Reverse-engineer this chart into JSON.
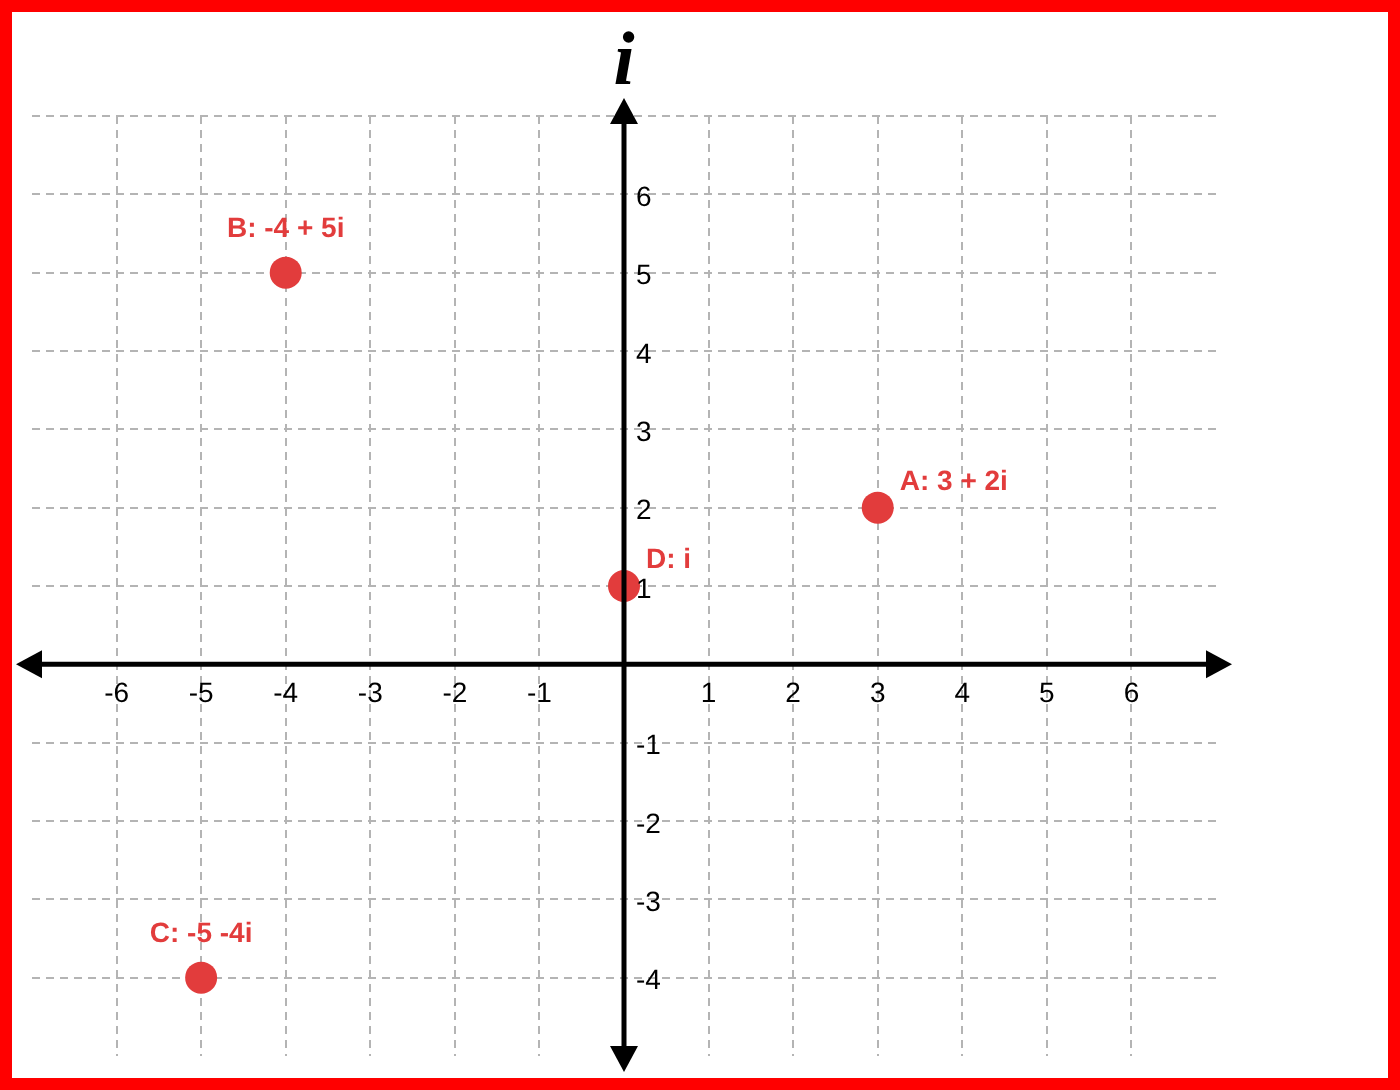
{
  "chart_data": {
    "type": "scatter",
    "ylabel": "i",
    "x": [
      3,
      -4,
      -5,
      0
    ],
    "values": [
      2,
      5,
      -4,
      1
    ],
    "color": "#e23c3c",
    "marker": "circle",
    "xlim": [
      -7,
      7
    ],
    "ylim": [
      -5,
      7
    ],
    "xticks": [
      -6,
      -5,
      -4,
      -3,
      -2,
      -1,
      1,
      2,
      3,
      4,
      5,
      6
    ],
    "yticks": [
      -4,
      -3,
      -2,
      -1,
      1,
      2,
      3,
      4,
      5,
      6,
      {
        "value": 7,
        "label": null
      }
    ],
    "grid": true,
    "annotations": [
      {
        "text": "A: 3 + 2i",
        "x": 3,
        "y": 2
      },
      {
        "text": "B: -4 + 5i",
        "x": -4,
        "y": 5
      },
      {
        "text": "C: -5 -4i",
        "x": -5,
        "y": -4
      },
      {
        "text": "D: i",
        "x": 0,
        "y": 1
      }
    ]
  }
}
